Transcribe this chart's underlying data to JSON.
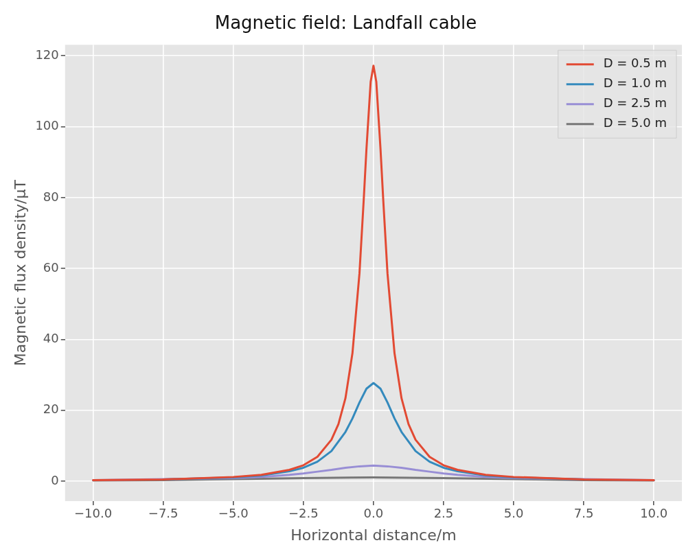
{
  "chart_data": {
    "type": "line",
    "title": "Magnetic field: Landfall cable",
    "xlabel": "Horizontal distance/m",
    "ylabel": "Magnetic flux density/μT",
    "xlim": [
      -11,
      11
    ],
    "xticks": [
      {
        "value": -10,
        "label": "−10.0"
      },
      {
        "value": -7.5,
        "label": "−7.5"
      },
      {
        "value": -5,
        "label": "−5.0"
      },
      {
        "value": -2.5,
        "label": "−2.5"
      },
      {
        "value": 0,
        "label": "0.0"
      },
      {
        "value": 2.5,
        "label": "2.5"
      },
      {
        "value": 5,
        "label": "5.0"
      },
      {
        "value": 7.5,
        "label": "7.5"
      },
      {
        "value": 10,
        "label": "10.0"
      }
    ],
    "ylim": [
      -5.6,
      123.1
    ],
    "yticks": [
      0,
      20,
      40,
      60,
      80,
      100,
      120
    ],
    "grid": true,
    "legend": "top right",
    "marker": "none",
    "line_style": "solid",
    "series": [
      {
        "name": "D = 0.5 m",
        "color": "#e24a33",
        "x": [
          -10,
          -7.5,
          -5,
          -4,
          -3,
          -2.5,
          -2,
          -1.5,
          -1.25,
          -1,
          -0.75,
          -0.5,
          -0.35,
          -0.25,
          -0.1,
          0,
          0.1,
          0.25,
          0.35,
          0.5,
          0.75,
          1,
          1.25,
          1.5,
          2,
          2.5,
          3,
          4,
          5,
          7.5,
          10
        ],
        "values": [
          0.3,
          0.5,
          1.2,
          1.8,
          3.2,
          4.5,
          6.9,
          11.7,
          16.1,
          23.4,
          36.1,
          58.6,
          79.1,
          93.8,
          112.7,
          117.2,
          112.7,
          93.8,
          79.1,
          58.6,
          36.1,
          23.4,
          16.1,
          11.7,
          6.9,
          4.5,
          3.2,
          1.8,
          1.2,
          0.5,
          0.3
        ]
      },
      {
        "name": "D = 1.0 m",
        "color": "#348abd",
        "x": [
          -7.5,
          -5,
          -4,
          -3,
          -2.5,
          -2,
          -1.5,
          -1,
          -0.75,
          -0.5,
          -0.25,
          0,
          0.25,
          0.5,
          0.75,
          1,
          1.5,
          2,
          2.5,
          3,
          4,
          5,
          7.5
        ],
        "values": [
          0.5,
          1.1,
          1.6,
          2.8,
          3.8,
          5.5,
          8.5,
          13.9,
          17.7,
          22.2,
          26.1,
          27.7,
          26.1,
          22.2,
          17.7,
          13.9,
          8.5,
          5.5,
          3.8,
          2.8,
          1.6,
          1.1,
          0.5
        ]
      },
      {
        "name": "D = 2.5 m",
        "color": "#988ed5",
        "x": [
          -10,
          -5,
          -4,
          -3,
          -2.5,
          -2,
          -1.5,
          -1,
          -0.5,
          0,
          0.5,
          1,
          1.5,
          2,
          2.5,
          3,
          4,
          5,
          10
        ],
        "values": [
          0.3,
          0.9,
          1.2,
          1.8,
          2.2,
          2.7,
          3.2,
          3.8,
          4.2,
          4.4,
          4.2,
          3.8,
          3.2,
          2.7,
          2.2,
          1.8,
          1.2,
          0.9,
          0.3
        ]
      },
      {
        "name": "D = 5.0 m",
        "color": "#777777",
        "x": [
          -10,
          -7.5,
          -5,
          -2.5,
          0,
          2.5,
          5,
          7.5,
          10
        ],
        "values": [
          0.2,
          0.3,
          0.6,
          0.9,
          1.1,
          0.9,
          0.6,
          0.3,
          0.2
        ]
      }
    ]
  }
}
